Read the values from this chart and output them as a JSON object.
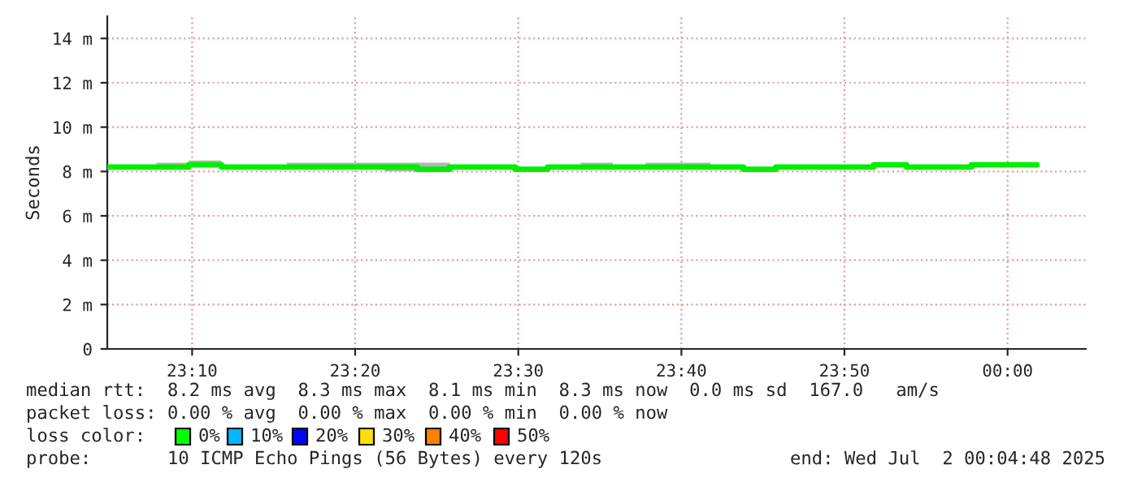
{
  "chart_data": {
    "type": "step",
    "ylabel": "Seconds",
    "x": [
      23.08,
      23.0967,
      23.13,
      23.1633,
      23.1967,
      23.23,
      23.2633,
      23.2967,
      23.33,
      23.3633,
      23.3967,
      23.43,
      23.4633,
      23.4967,
      23.53,
      23.5633,
      23.5967,
      23.63,
      23.6633,
      23.6967,
      23.73,
      23.7633,
      23.7967,
      23.83,
      23.8633,
      23.8967,
      23.93,
      23.9633,
      23.9967,
      24.03
    ],
    "series": [
      {
        "color": "#00ee00",
        "values": [
          8.2,
          8.2,
          8.2,
          8.3,
          8.2,
          8.2,
          8.2,
          8.2,
          8.2,
          8.2,
          8.1,
          8.2,
          8.2,
          8.1,
          8.2,
          8.2,
          8.2,
          8.2,
          8.2,
          8.2,
          8.1,
          8.2,
          8.2,
          8.2,
          8.3,
          8.2,
          8.2,
          8.3,
          8.3,
          8.3
        ],
        "lower": [
          8.1,
          8.1,
          8.1,
          8.2,
          8.1,
          8.1,
          8.1,
          8.1,
          8.1,
          8.0,
          8.0,
          8.1,
          8.1,
          8.0,
          8.1,
          8.1,
          8.1,
          8.1,
          8.1,
          8.1,
          8.0,
          8.1,
          8.1,
          8.1,
          8.2,
          8.1,
          8.1,
          8.2,
          8.2,
          8.2
        ],
        "upper": [
          8.3,
          8.3,
          8.4,
          8.5,
          8.3,
          8.3,
          8.4,
          8.4,
          8.4,
          8.4,
          8.4,
          8.3,
          8.3,
          8.2,
          8.3,
          8.4,
          8.3,
          8.4,
          8.4,
          8.3,
          8.2,
          8.3,
          8.3,
          8.3,
          8.4,
          8.2,
          8.3,
          8.4,
          8.4,
          8.4
        ]
      }
    ],
    "xlim": [
      23.08,
      24.08
    ],
    "ylim": [
      0,
      15
    ],
    "xticks": [
      {
        "value": 23.1667,
        "label": "23:10"
      },
      {
        "value": 23.3333,
        "label": "23:20"
      },
      {
        "value": 23.5,
        "label": "23:30"
      },
      {
        "value": 23.6667,
        "label": "23:40"
      },
      {
        "value": 23.8333,
        "label": "23:50"
      },
      {
        "value": 24.0,
        "label": "00:00"
      }
    ],
    "yticks": [
      0,
      {
        "value": 2,
        "label": "2 m"
      },
      {
        "value": 4,
        "label": "4 m"
      },
      {
        "value": 6,
        "label": "6 m"
      },
      {
        "value": 8,
        "label": "8 m"
      },
      {
        "value": 10,
        "label": "10 m"
      },
      {
        "value": 12,
        "label": "12 m"
      },
      {
        "value": 14,
        "label": "14 m"
      }
    ],
    "grid": true,
    "annotations": [
      "median rtt:  8.2 ms avg  8.3 ms max  8.1 ms min  8.3 ms now  0.0 ms sd  167.0   am/s",
      "packet loss: 0.00 % avg  0.00 % max  0.00 % min  0.00 % now",
      "loss color:",
      "0%",
      "10%",
      "20%",
      "30%",
      "40%",
      "50%",
      "probe:       10 ICMP Echo Pings (56 Bytes) every 120s",
      "end: Wed Jul  2 00:04:48 2025"
    ]
  }
}
